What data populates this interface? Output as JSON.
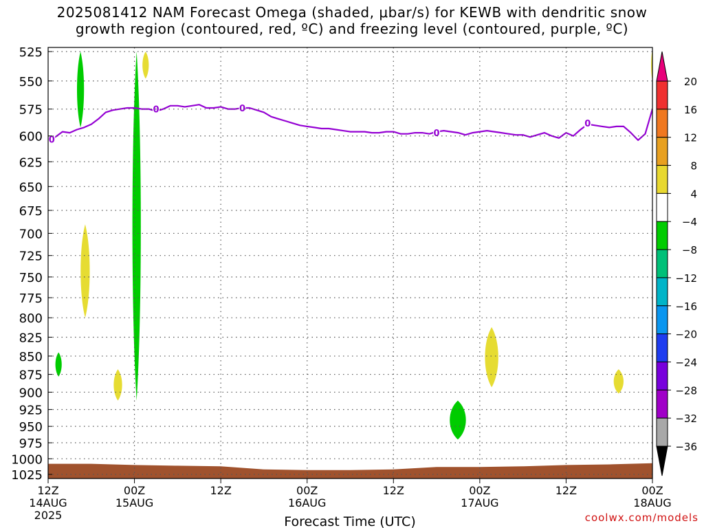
{
  "title": {
    "line1": "2025081412 NAM Forecast Omega (shaded, μbar/s) for KEWB with dendritic snow",
    "line2": "growth region (contoured, red, ºC) and freezing level (contoured, purple, ºC)"
  },
  "credit": "coolwx.com/models",
  "colors": {
    "freezing_line": "#9400d3",
    "terrain": "#a0522d",
    "ascent": "#00cc00",
    "descent": "#e6dc32",
    "grid": "#555555"
  },
  "chart_data": {
    "type": "time-height contour",
    "title": "2025081412 NAM Forecast Omega (shaded, μbar/s) for KEWB with dendritic snow growth region (contoured, red, ºC) and freezing level (contoured, purple, ºC)",
    "xlabel": "Forecast Time (UTC)",
    "ylabel": "",
    "x_range_hours": [
      0,
      84
    ],
    "y_range_hpa": [
      525,
      1025
    ],
    "y_scale": "log-pressure",
    "grid": true,
    "y_ticks": [
      525,
      550,
      575,
      600,
      625,
      650,
      675,
      700,
      725,
      750,
      775,
      800,
      825,
      850,
      875,
      900,
      925,
      950,
      975,
      1000,
      1025
    ],
    "x_ticks": [
      {
        "hour": 0,
        "lines": [
          "12Z",
          "14AUG",
          "2025"
        ]
      },
      {
        "hour": 12,
        "lines": [
          "00Z",
          "15AUG"
        ]
      },
      {
        "hour": 24,
        "lines": [
          "12Z"
        ]
      },
      {
        "hour": 36,
        "lines": [
          "00Z",
          "16AUG"
        ]
      },
      {
        "hour": 48,
        "lines": [
          "12Z"
        ]
      },
      {
        "hour": 60,
        "lines": [
          "00Z",
          "17AUG"
        ]
      },
      {
        "hour": 72,
        "lines": [
          "12Z"
        ]
      },
      {
        "hour": 84,
        "lines": [
          "00Z",
          "18AUG"
        ]
      }
    ],
    "colorbar": {
      "labels": [
        "20",
        "16",
        "12",
        "8",
        "4",
        "-4",
        "-8",
        "-12",
        "-16",
        "-20",
        "-24",
        "-28",
        "-32",
        "-36"
      ],
      "colors_top_to_bottom": [
        "#e8007a",
        "#f03030",
        "#f07820",
        "#e8a020",
        "#e8d830",
        "#ffffff",
        "#00cc00",
        "#00c078",
        "#00b4c8",
        "#0a96f0",
        "#1e3cf0",
        "#7800dc",
        "#a000c8",
        "#a8a8a8",
        "#000000"
      ]
    },
    "freezing_level": {
      "label": "0",
      "label_points": [
        {
          "t": 0.5,
          "p": 603
        },
        {
          "t": 15,
          "p": 575
        },
        {
          "t": 27,
          "p": 574
        },
        {
          "t": 54,
          "p": 597
        },
        {
          "t": 75,
          "p": 588
        }
      ],
      "t": [
        0,
        1,
        2,
        3,
        4,
        5,
        6,
        7,
        8,
        9,
        10,
        11,
        12,
        13,
        14,
        15,
        16,
        17,
        18,
        19,
        20,
        21,
        22,
        23,
        24,
        25,
        26,
        27,
        28,
        29,
        30,
        31,
        32,
        33,
        34,
        35,
        36,
        37,
        38,
        39,
        40,
        41,
        42,
        43,
        44,
        45,
        46,
        47,
        48,
        49,
        50,
        51,
        52,
        53,
        54,
        55,
        56,
        57,
        58,
        59,
        60,
        61,
        62,
        63,
        64,
        65,
        66,
        67,
        68,
        69,
        70,
        71,
        72,
        73,
        74,
        75,
        76,
        77,
        78,
        79,
        80,
        81,
        82,
        83,
        84
      ],
      "p": [
        603,
        601,
        596,
        597,
        594,
        592,
        589,
        584,
        578,
        576,
        575,
        574,
        574,
        575,
        575,
        577,
        575,
        572,
        572,
        573,
        572,
        571,
        574,
        574,
        573,
        575,
        575,
        574,
        574,
        576,
        578,
        582,
        584,
        586,
        588,
        590,
        591,
        592,
        593,
        593,
        594,
        595,
        596,
        596,
        596,
        597,
        597,
        596,
        596,
        598,
        598,
        597,
        597,
        598,
        596,
        595,
        596,
        597,
        599,
        597,
        596,
        595,
        596,
        597,
        598,
        599,
        599,
        601,
        599,
        597,
        600,
        602,
        597,
        600,
        594,
        589,
        590,
        591,
        592,
        591,
        591,
        597,
        604,
        598,
        575
      ]
    },
    "omega_shaded_regions": [
      {
        "sign": "ascent",
        "range_ubar_s": [
          -8,
          -4
        ],
        "t": [
          4,
          5
        ],
        "p": [
          525,
          592
        ]
      },
      {
        "sign": "ascent",
        "range_ubar_s": [
          -8,
          -4
        ],
        "t": [
          11.7,
          12.9
        ],
        "p": [
          525,
          912
        ]
      },
      {
        "sign": "ascent",
        "range_ubar_s": [
          -8,
          -4
        ],
        "t": [
          1.0,
          1.9
        ],
        "p": [
          845,
          878
        ]
      },
      {
        "sign": "ascent",
        "range_ubar_s": [
          -8,
          -4
        ],
        "t": [
          55.8,
          58.1
        ],
        "p": [
          912,
          970
        ]
      },
      {
        "sign": "descent",
        "range_ubar_s": [
          4,
          8
        ],
        "t": [
          13.1,
          14.0
        ],
        "p": [
          525,
          548
        ]
      },
      {
        "sign": "descent",
        "range_ubar_s": [
          4,
          8
        ],
        "t": [
          4.5,
          5.8
        ],
        "p": [
          690,
          800
        ]
      },
      {
        "sign": "descent",
        "range_ubar_s": [
          4,
          8
        ],
        "t": [
          9.1,
          10.3
        ],
        "p": [
          868,
          912
        ]
      },
      {
        "sign": "descent",
        "range_ubar_s": [
          4,
          8
        ],
        "t": [
          60.7,
          62.6
        ],
        "p": [
          812,
          893
        ]
      },
      {
        "sign": "descent",
        "range_ubar_s": [
          4,
          8
        ],
        "t": [
          78.6,
          80.0
        ],
        "p": [
          868,
          902
        ]
      },
      {
        "sign": "descent",
        "range_ubar_s": [
          4,
          8
        ],
        "t": [
          83.9,
          84
        ],
        "p": [
          525,
          548
        ]
      }
    ],
    "terrain_surface_pressure_hpa": {
      "t": [
        0,
        6,
        12,
        18,
        24,
        30,
        36,
        42,
        48,
        54,
        60,
        66,
        72,
        78,
        84
      ],
      "p": [
        1008,
        1008,
        1010,
        1011,
        1012,
        1017,
        1018,
        1018,
        1017,
        1013,
        1013,
        1012,
        1010,
        1009,
        1007
      ]
    }
  }
}
